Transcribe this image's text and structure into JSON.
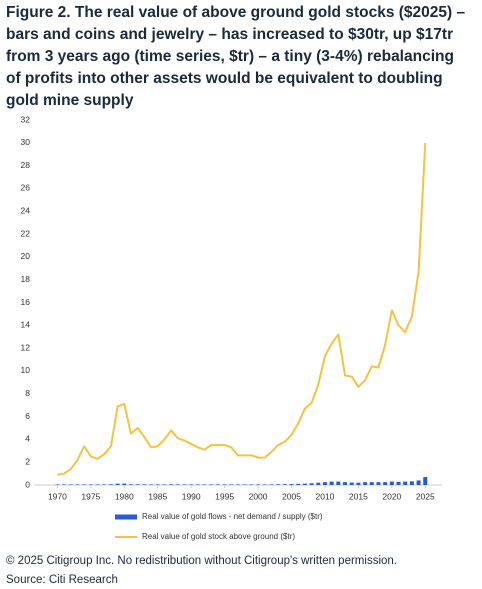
{
  "chart_data": {
    "type": "line",
    "title": "Figure 2. The real value of above ground gold stocks ($2025) – bars and coins and jewelry – has increased to $30tr, up $17tr from 3 years ago (time series, $tr) – a tiny (3-4%) rebalancing of profits into other assets would be equivalent to doubling gold mine supply",
    "x": [
      1970,
      1971,
      1972,
      1973,
      1974,
      1975,
      1976,
      1977,
      1978,
      1979,
      1980,
      1981,
      1982,
      1983,
      1984,
      1985,
      1986,
      1987,
      1988,
      1989,
      1990,
      1991,
      1992,
      1993,
      1994,
      1995,
      1996,
      1997,
      1998,
      1999,
      2000,
      2001,
      2002,
      2003,
      2004,
      2005,
      2006,
      2007,
      2008,
      2009,
      2010,
      2011,
      2012,
      2013,
      2014,
      2015,
      2016,
      2017,
      2018,
      2019,
      2020,
      2021,
      2022,
      2023,
      2024,
      2025
    ],
    "series": [
      {
        "name": "Real value of gold flows - net demand / supply ($tr)",
        "color": "#2a5bd7",
        "kind": "bar",
        "values": [
          0.05,
          0.05,
          0.05,
          0.05,
          0.05,
          0.05,
          0.05,
          0.05,
          0.06,
          0.12,
          0.12,
          0.06,
          0.06,
          0.06,
          0.05,
          0.05,
          0.05,
          0.06,
          0.05,
          0.05,
          0.05,
          0.05,
          0.05,
          0.05,
          0.05,
          0.05,
          0.05,
          0.05,
          0.05,
          0.05,
          0.05,
          0.05,
          0.05,
          0.06,
          0.07,
          0.08,
          0.1,
          0.12,
          0.15,
          0.2,
          0.25,
          0.3,
          0.3,
          0.25,
          0.22,
          0.2,
          0.25,
          0.25,
          0.25,
          0.25,
          0.3,
          0.28,
          0.3,
          0.32,
          0.4,
          0.7
        ]
      },
      {
        "name": "Real value of gold stock above ground ($tr)",
        "color": "#f5c242",
        "kind": "line",
        "values": [
          0.9,
          1.0,
          1.4,
          2.2,
          3.4,
          2.5,
          2.3,
          2.7,
          3.4,
          6.9,
          7.1,
          4.5,
          5.0,
          4.2,
          3.3,
          3.4,
          4.0,
          4.8,
          4.1,
          3.9,
          3.6,
          3.3,
          3.1,
          3.5,
          3.5,
          3.5,
          3.3,
          2.6,
          2.6,
          2.6,
          2.4,
          2.4,
          2.9,
          3.5,
          3.8,
          4.4,
          5.4,
          6.7,
          7.2,
          8.8,
          11.3,
          12.4,
          13.2,
          9.6,
          9.5,
          8.6,
          9.2,
          10.4,
          10.3,
          12.3,
          15.3,
          14.0,
          13.4,
          14.8,
          18.7,
          30.0
        ]
      }
    ],
    "xlim": [
      1966.5,
      2027.5
    ],
    "xticks": [
      1970,
      1975,
      1980,
      1985,
      1990,
      1995,
      2000,
      2005,
      2010,
      2015,
      2020,
      2025
    ],
    "ylim": [
      0,
      32
    ],
    "yticks": [
      0,
      2,
      4,
      6,
      8,
      10,
      12,
      14,
      16,
      18,
      20,
      22,
      24,
      26,
      28,
      30,
      32
    ],
    "footer": [
      "© 2025 Citigroup Inc. No redistribution without Citigroup's written permission.",
      "Source: Citi Research"
    ]
  }
}
